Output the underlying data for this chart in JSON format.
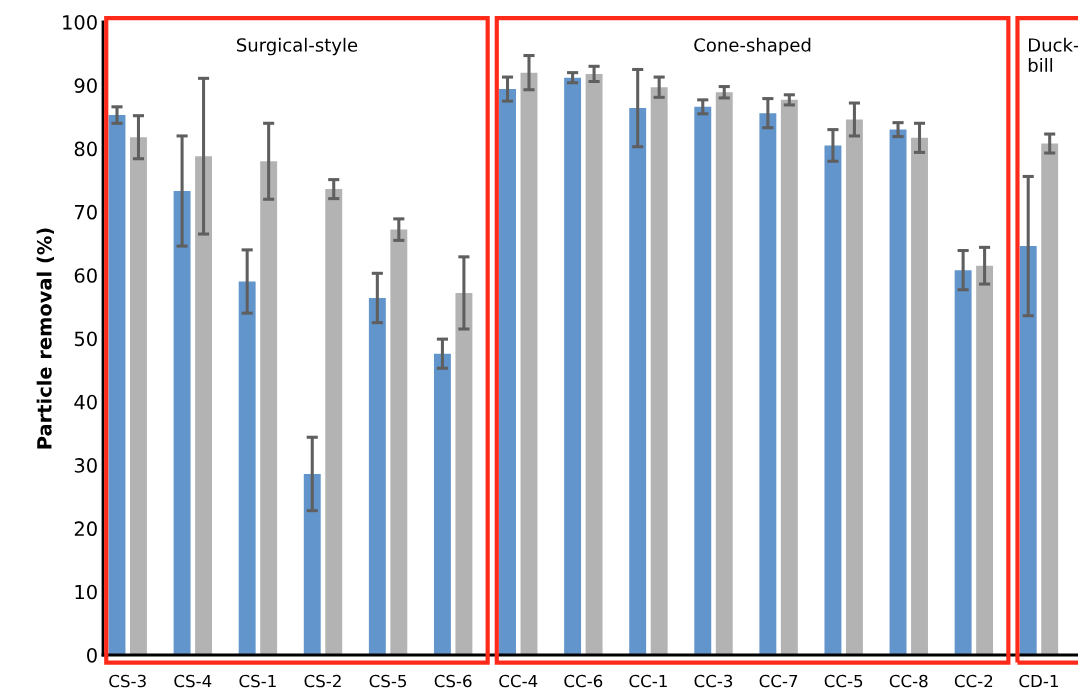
{
  "chart_data": {
    "type": "bar",
    "ylabel": "Particle removal (%)",
    "categories": [
      "CS-3",
      "CS-4",
      "CS-1",
      "CS-2",
      "CS-5",
      "CS-6",
      "CC-4",
      "CC-6",
      "CC-1",
      "CC-3",
      "CC-7",
      "CC-5",
      "CC-8",
      "CC-2",
      "CD-1"
    ],
    "series": [
      {
        "color": "#6295cb",
        "values": [
          85.3,
          73.3,
          59,
          28.6,
          56.4,
          47.6,
          89.4,
          91.2,
          86.4,
          86.6,
          85.6,
          80.5,
          83,
          60.8,
          64.6
        ],
        "errors": [
          1.3,
          8.7,
          5,
          5.8,
          3.9,
          2.3,
          1.9,
          0.8,
          6.1,
          1.1,
          2.3,
          2.5,
          1.1,
          3.1,
          11
        ]
      },
      {
        "color": "#b3b3b3",
        "values": [
          81.8,
          78.8,
          78,
          73.6,
          67.2,
          57.2,
          92,
          91.8,
          89.7,
          88.9,
          87.7,
          84.6,
          81.7,
          61.5,
          80.8
        ],
        "errors": [
          3.4,
          12.3,
          6,
          1.5,
          1.7,
          5.7,
          2.7,
          1.2,
          1.6,
          0.9,
          0.8,
          2.6,
          2.3,
          2.9,
          1.5
        ]
      }
    ],
    "annotations": [
      "Surgical-style",
      "Cone-shaped",
      "Duck-\nbill"
    ],
    "ylim": [
      0,
      100
    ],
    "yticks": [
      0,
      10,
      20,
      30,
      40,
      50,
      60,
      70,
      80,
      90,
      100
    ],
    "grid": false,
    "legend": false
  }
}
